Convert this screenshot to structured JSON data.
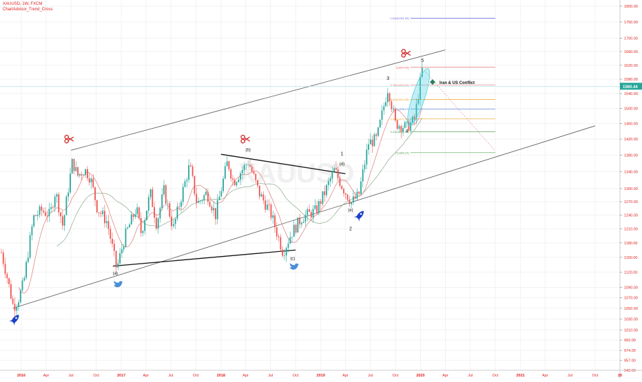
{
  "header": {
    "symbol_line": "XAUUSD, 1W, FXCM",
    "indicator_line": "ChartAdvisor_Trend_Cross"
  },
  "chart_data": {
    "type": "candlestick",
    "symbol": "XAUUSD",
    "interval": "1W",
    "source": "FXCM",
    "x_range": [
      "2015-10-15",
      "2021-12-31"
    ],
    "y_range": [
      940,
      1820
    ],
    "price_scale": "log",
    "colors": {
      "up": "#26a69a",
      "down": "#ef5350",
      "axis_text": "#e02020",
      "grid": "#f2f2f2",
      "channel": "#555555",
      "ma_fast": "#e07a7a",
      "ma_slow": "#8aa88a",
      "last_price_badge": "#26a69a",
      "conflict_ellipse": "#4dd0e1"
    },
    "y_ticks": [
      "1800.00",
      "1750.00",
      "1700.00",
      "1660.00",
      "1620.00",
      "1580.00",
      "1540.00",
      "1500.00",
      "1460.00",
      "1420.00",
      "1380.00",
      "1340.00",
      "1300.00",
      "1270.00",
      "1240.00",
      "1210.00",
      "1180.00",
      "1150.00",
      "1120.00",
      "1090.00",
      "1070.00",
      "1050.00",
      "1030.00",
      "1010.00",
      "992.00",
      "974.00",
      "957.00",
      "940.00"
    ],
    "x_ticks": [
      {
        "label": "Oct",
        "date": "2015-10-01"
      },
      {
        "label": "2016",
        "date": "2016-01-01"
      },
      {
        "label": "Apr",
        "date": "2016-04-01"
      },
      {
        "label": "Jul",
        "date": "2016-07-01"
      },
      {
        "label": "Oct",
        "date": "2016-10-01"
      },
      {
        "label": "2017",
        "date": "2017-01-01"
      },
      {
        "label": "Apr",
        "date": "2017-04-01"
      },
      {
        "label": "Jul",
        "date": "2017-07-01"
      },
      {
        "label": "Oct",
        "date": "2017-10-01"
      },
      {
        "label": "2018",
        "date": "2018-01-01"
      },
      {
        "label": "Apr",
        "date": "2018-04-01"
      },
      {
        "label": "Jul",
        "date": "2018-07-01"
      },
      {
        "label": "Oct",
        "date": "2018-10-01"
      },
      {
        "label": "2019",
        "date": "2019-01-01"
      },
      {
        "label": "Apr",
        "date": "2019-04-01"
      },
      {
        "label": "Jul",
        "date": "2019-07-01"
      },
      {
        "label": "Oct",
        "date": "2019-10-01"
      },
      {
        "label": "2020",
        "date": "2020-01-01"
      },
      {
        "label": "Apr",
        "date": "2020-04-01"
      },
      {
        "label": "Jul",
        "date": "2020-07-01"
      },
      {
        "label": "Oct",
        "date": "2020-10-01"
      },
      {
        "label": "2021",
        "date": "2021-01-01"
      },
      {
        "label": "Apr",
        "date": "2021-04-01"
      },
      {
        "label": "Jul",
        "date": "2021-07-01"
      },
      {
        "label": "Oct",
        "date": "2021-10-01"
      },
      {
        "label": "20",
        "date": "2021-12-31"
      }
    ],
    "price_path": [
      [
        "2015-10-20",
        1160
      ],
      [
        "2015-11-10",
        1110
      ],
      [
        "2015-12-03",
        1052
      ],
      [
        "2015-12-20",
        1065
      ],
      [
        "2016-01-10",
        1100
      ],
      [
        "2016-02-15",
        1235
      ],
      [
        "2016-03-15",
        1250
      ],
      [
        "2016-04-15",
        1240
      ],
      [
        "2016-05-05",
        1295
      ],
      [
        "2016-06-01",
        1215
      ],
      [
        "2016-07-06",
        1365
      ],
      [
        "2016-07-25",
        1330
      ],
      [
        "2016-08-20",
        1345
      ],
      [
        "2016-09-10",
        1325
      ],
      [
        "2016-10-05",
        1255
      ],
      [
        "2016-11-10",
        1225
      ],
      [
        "2016-12-15",
        1125
      ],
      [
        "2017-01-15",
        1195
      ],
      [
        "2017-02-25",
        1255
      ],
      [
        "2017-03-15",
        1200
      ],
      [
        "2017-04-17",
        1290
      ],
      [
        "2017-05-10",
        1220
      ],
      [
        "2017-06-06",
        1295
      ],
      [
        "2017-07-10",
        1210
      ],
      [
        "2017-09-08",
        1355
      ],
      [
        "2017-10-05",
        1265
      ],
      [
        "2017-11-10",
        1290
      ],
      [
        "2017-12-12",
        1240
      ],
      [
        "2018-01-25",
        1365
      ],
      [
        "2018-02-15",
        1315
      ],
      [
        "2018-04-11",
        1365
      ],
      [
        "2018-05-20",
        1290
      ],
      [
        "2018-07-01",
        1245
      ],
      [
        "2018-08-16",
        1160
      ],
      [
        "2018-09-15",
        1200
      ],
      [
        "2018-10-25",
        1235
      ],
      [
        "2018-12-15",
        1250
      ],
      [
        "2019-01-15",
        1290
      ],
      [
        "2019-02-20",
        1345
      ],
      [
        "2019-03-20",
        1305
      ],
      [
        "2019-04-23",
        1268
      ],
      [
        "2019-05-20",
        1285
      ],
      [
        "2019-06-25",
        1410
      ],
      [
        "2019-07-25",
        1420
      ],
      [
        "2019-09-04",
        1557
      ],
      [
        "2019-10-01",
        1460
      ],
      [
        "2019-11-12",
        1450
      ],
      [
        "2019-12-10",
        1470
      ],
      [
        "2020-01-08",
        1611
      ],
      [
        "2020-01-12",
        1560
      ]
    ],
    "last_price": "1560.44",
    "last_price_value": 1560.44,
    "channel_lines": [
      {
        "name": "upper",
        "from": [
          "2016-07-01",
          1392
        ],
        "to": [
          "2020-04-01",
          1665
        ]
      },
      {
        "name": "lower",
        "from": [
          "2015-12-01",
          1050
        ],
        "to": [
          "2021-10-01",
          1454
        ]
      }
    ],
    "triangle_lines": [
      {
        "from": [
          "2018-01-01",
          1382
        ],
        "to": [
          "2019-04-01",
          1335
        ]
      },
      {
        "from": [
          "2016-12-01",
          1132
        ],
        "to": [
          "2018-10-01",
          1165
        ]
      }
    ],
    "wave_labels": [
      {
        "text": "(a)",
        "x": "2016-12-10",
        "y": 1115
      },
      {
        "text": "(b)",
        "x": "2018-04-10",
        "y": 1390
      },
      {
        "text": "(c)",
        "x": "2018-09-20",
        "y": 1145
      },
      {
        "text": "(d)",
        "x": "2019-03-20",
        "y": 1355
      },
      {
        "text": "(e)",
        "x": "2019-04-20",
        "y": 1248
      },
      {
        "text": "1",
        "x": "2019-03-20",
        "y": 1380
      },
      {
        "text": "2",
        "x": "2019-04-20",
        "y": 1207
      },
      {
        "text": "3",
        "x": "2019-09-04",
        "y": 1578
      },
      {
        "text": "4",
        "x": "2019-11-12",
        "y": 1437
      },
      {
        "text": "5",
        "x": "2020-01-08",
        "y": 1630
      }
    ],
    "fib_levels": [
      {
        "label": "1.618(1761.92)",
        "value": 1762,
        "color": "#5a5ad8"
      },
      {
        "label": "1(1614.43)",
        "value": 1614,
        "color": "#e05050"
      },
      {
        "label": "0.786(1563.82)",
        "value": 1564,
        "color": "#e07a7a"
      },
      {
        "label": "0.618(1524.38)",
        "value": 1524,
        "color": "#f0a020"
      },
      {
        "label": "0.5(1498.07)",
        "value": 1498,
        "color": "#5080e0"
      },
      {
        "label": "0.382(1471.75)",
        "value": 1472,
        "color": "#f0a020"
      },
      {
        "label": "0.236(1439.19)",
        "value": 1439,
        "color": "#50a050"
      },
      {
        "label": "0(1386.25)",
        "value": 1386,
        "color": "#50a050"
      }
    ],
    "annotation": {
      "text": "Iran & US Conflict",
      "x": "2020-01-10",
      "y": 1572
    }
  }
}
